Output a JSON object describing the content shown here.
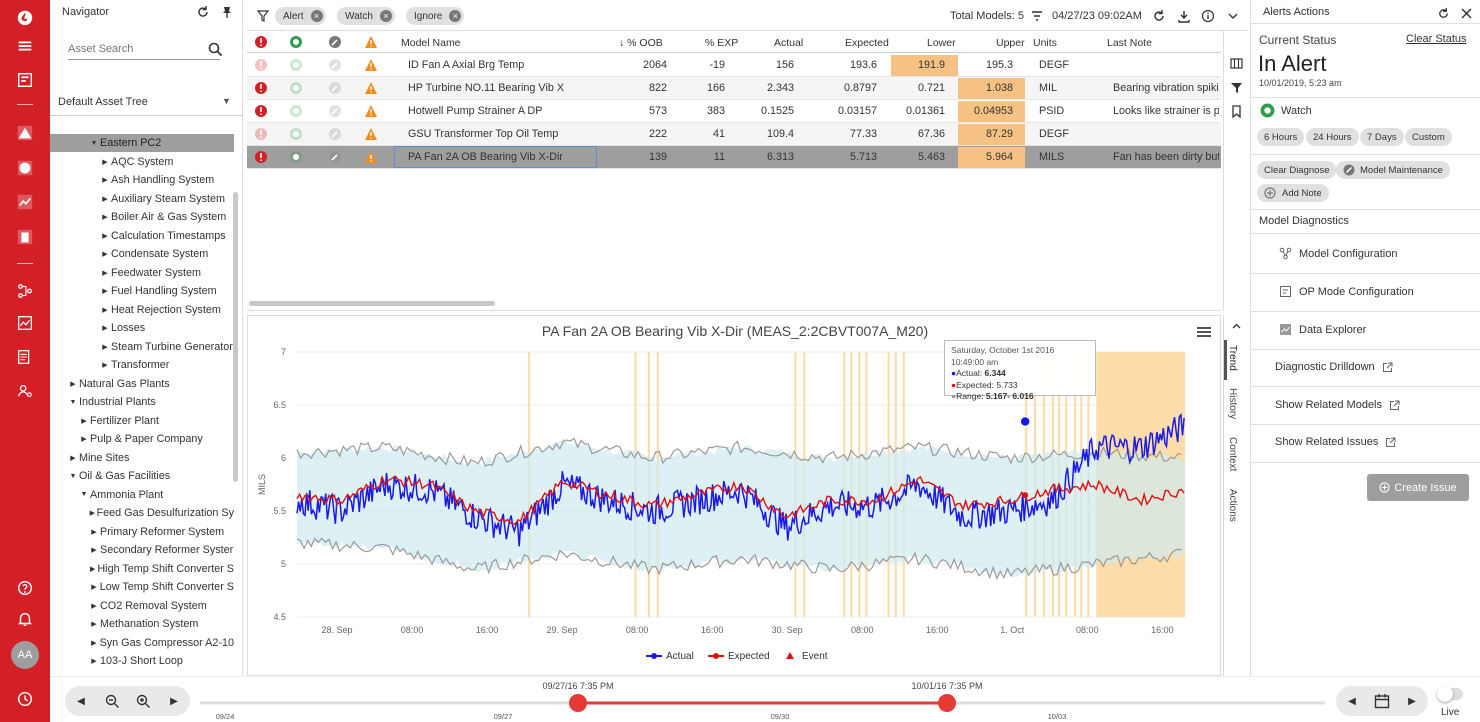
{
  "navigator": {
    "title": "Navigator",
    "search_placeholder": "Asset Search",
    "tree_select": "Default Asset Tree",
    "tree": [
      {
        "label": "Eastern PC2",
        "level": 3,
        "arrow": "down",
        "selected": true
      },
      {
        "label": "AQC System",
        "level": 4,
        "arrow": "right"
      },
      {
        "label": "Ash Handling System",
        "level": 4,
        "arrow": "right"
      },
      {
        "label": "Auxiliary Steam System",
        "level": 4,
        "arrow": "right"
      },
      {
        "label": "Boiler Air & Gas System",
        "level": 4,
        "arrow": "right"
      },
      {
        "label": "Calculation Timestamps",
        "level": 4,
        "arrow": "right"
      },
      {
        "label": "Condensate System",
        "level": 4,
        "arrow": "right"
      },
      {
        "label": "Feedwater System",
        "level": 4,
        "arrow": "right"
      },
      {
        "label": "Fuel Handling System",
        "level": 4,
        "arrow": "right"
      },
      {
        "label": "Heat Rejection System",
        "level": 4,
        "arrow": "right"
      },
      {
        "label": "Losses",
        "level": 4,
        "arrow": "right"
      },
      {
        "label": "Steam Turbine Generator",
        "level": 4,
        "arrow": "right"
      },
      {
        "label": "Transformer",
        "level": 4,
        "arrow": "right"
      },
      {
        "label": "Natural Gas Plants",
        "level": 1,
        "arrow": "right"
      },
      {
        "label": "Industrial Plants",
        "level": 1,
        "arrow": "down"
      },
      {
        "label": "Fertilizer Plant",
        "level": 2,
        "arrow": "right"
      },
      {
        "label": "Pulp & Paper Company",
        "level": 2,
        "arrow": "right"
      },
      {
        "label": "Mine Sites",
        "level": 1,
        "arrow": "right"
      },
      {
        "label": "Oil & Gas Facilities",
        "level": 1,
        "arrow": "down"
      },
      {
        "label": "Ammonia Plant",
        "level": 2,
        "arrow": "down"
      },
      {
        "label": "Feed Gas Desulfurization Sy",
        "level": 3,
        "arrow": "right"
      },
      {
        "label": "Primary Reformer System",
        "level": 3,
        "arrow": "right"
      },
      {
        "label": "Secondary Reformer Syster",
        "level": 3,
        "arrow": "right"
      },
      {
        "label": "High Temp Shift Converter S",
        "level": 3,
        "arrow": "right"
      },
      {
        "label": "Low Temp Shift Converter S",
        "level": 3,
        "arrow": "right"
      },
      {
        "label": "CO2 Removal System",
        "level": 3,
        "arrow": "right"
      },
      {
        "label": "Methanation System",
        "level": 3,
        "arrow": "right"
      },
      {
        "label": "Syn Gas Compressor A2-10",
        "level": 3,
        "arrow": "right"
      },
      {
        "label": "103-J Short Loop",
        "level": 3,
        "arrow": "right"
      }
    ]
  },
  "toolbar": {
    "chips": [
      "Alert",
      "Watch",
      "Ignore"
    ],
    "total_models": "Total Models: 5",
    "date": "04/27/23 09:02AM"
  },
  "table": {
    "headers": [
      "Model Name",
      "% OOB",
      "% EXP",
      "Actual",
      "Expected",
      "Lower",
      "Upper",
      "Units",
      "Last Note"
    ],
    "rows": [
      {
        "name": "ID Fan A Axial Brg Temp",
        "oob": "2064",
        "exp": "-19",
        "actual": "156",
        "expected": "193.6",
        "lower": "191.9",
        "upper": "195.3",
        "units": "DEGF",
        "note": "",
        "hl": "lower",
        "alert": false
      },
      {
        "name": "HP Turbine NO.11 Bearing Vib X",
        "oob": "822",
        "exp": "166",
        "actual": "2.343",
        "expected": "0.8797",
        "lower": "0.721",
        "upper": "1.038",
        "units": "MIL",
        "note": "Bearing vibration spiking",
        "hl": "upper",
        "alert": true
      },
      {
        "name": "Hotwell Pump Strainer A DP",
        "oob": "573",
        "exp": "383",
        "actual": "0.1525",
        "expected": "0.03157",
        "lower": "0.01361",
        "upper": "0.04953",
        "units": "PSID",
        "note": "Looks like strainer is pl",
        "hl": "upper",
        "alert": true
      },
      {
        "name": "GSU Transformer Top Oil Temp",
        "oob": "222",
        "exp": "41",
        "actual": "109.4",
        "expected": "77.33",
        "lower": "67.36",
        "upper": "87.29",
        "units": "DEGF",
        "note": "",
        "hl": "upper",
        "alert": false
      },
      {
        "name": "PA Fan 2A OB Bearing Vib X-Dir",
        "oob": "139",
        "exp": "11",
        "actual": "6.313",
        "expected": "5.713",
        "lower": "5.463",
        "upper": "5.964",
        "units": "MILS",
        "note": "Fan has been dirty but",
        "hl": "upper",
        "alert": true,
        "selected": true
      }
    ]
  },
  "chart": {
    "title": "PA Fan 2A OB Bearing Vib X-Dir (MEAS_2:2CBVT007A_M20)",
    "tooltip": {
      "date": "Saturday, October 1st 2016 10:49:00 am",
      "actual_label": "Actual: ",
      "actual": "6.344",
      "expected_label": "Expected: ",
      "expected": "5.733",
      "range_label": "Range: ",
      "range": "5.167- 6.016"
    }
  },
  "chart_data": {
    "type": "line",
    "title": "PA Fan 2A OB Bearing Vib X-Dir (MEAS_2:2CBVT007A_M20)",
    "ylabel": "MILS",
    "ylim": [
      4.5,
      7
    ],
    "yticks": [
      7,
      6.5,
      6,
      5.5,
      5,
      4.5
    ],
    "xticks": [
      "28. Sep",
      "08:00",
      "16:00",
      "29. Sep",
      "08:00",
      "16:00",
      "30. Sep",
      "08:00",
      "16:00",
      "1. Oct",
      "08:00",
      "16:00"
    ],
    "legend": [
      "Actual",
      "Expected",
      "Event"
    ],
    "series": [
      {
        "name": "Actual",
        "color": "#1a1ae6",
        "x": [
          0,
          5,
          10,
          15,
          20,
          25,
          30,
          35,
          40,
          45,
          50,
          55,
          60,
          65,
          70,
          75,
          80,
          85,
          90,
          95,
          100
        ],
        "values": [
          5.6,
          5.5,
          5.75,
          5.7,
          5.45,
          5.3,
          5.75,
          5.6,
          5.5,
          5.6,
          5.7,
          5.35,
          5.55,
          5.55,
          5.75,
          5.45,
          5.5,
          5.6,
          6.1,
          6.1,
          6.3
        ]
      },
      {
        "name": "Expected",
        "color": "#e01010",
        "x": [
          0,
          5,
          10,
          15,
          20,
          25,
          30,
          35,
          40,
          45,
          50,
          55,
          60,
          65,
          70,
          75,
          80,
          85,
          90,
          95,
          100
        ],
        "values": [
          5.65,
          5.6,
          5.8,
          5.75,
          5.5,
          5.4,
          5.78,
          5.65,
          5.55,
          5.65,
          5.75,
          5.45,
          5.6,
          5.6,
          5.8,
          5.55,
          5.6,
          5.7,
          5.75,
          5.6,
          5.7
        ]
      },
      {
        "name": "Upper",
        "color": "#9a9a9a",
        "x": [
          0,
          10,
          20,
          30,
          40,
          50,
          60,
          70,
          80,
          90,
          100
        ],
        "values": [
          6.05,
          6.1,
          5.95,
          6.15,
          6.0,
          6.1,
          6.0,
          6.1,
          6.0,
          6.05,
          6.0
        ]
      },
      {
        "name": "Lower",
        "color": "#9a9a9a",
        "x": [
          0,
          10,
          20,
          30,
          40,
          50,
          60,
          70,
          80,
          90,
          100
        ],
        "values": [
          5.2,
          5.15,
          4.95,
          5.1,
          4.95,
          5.05,
          4.95,
          5.05,
          4.9,
          5.0,
          5.1
        ]
      }
    ],
    "bands_color": "#fcd9a0",
    "marker": {
      "label": "Actual",
      "x": 82,
      "value": 6.344
    }
  },
  "side": {
    "tabs": [
      "Trend",
      "History",
      "Context",
      "Actions"
    ]
  },
  "alerts": {
    "title": "Alerts Actions",
    "current_status_label": "Current Status",
    "clear_status": "Clear Status",
    "status": "In Alert",
    "status_time": "10/01/2019, 5:23 am",
    "watch": "Watch",
    "durations": [
      "6 Hours",
      "24 Hours",
      "7 Days",
      "Custom"
    ],
    "clear_diagnose": "Clear Diagnose",
    "model_maintenance": "Model Maintenance",
    "add_note": "Add Note",
    "diagnostics_title": "Model Diagnostics",
    "actions": [
      "Model Configuration",
      "OP Mode Configuration",
      "Data Explorer",
      "Diagnostic Drilldown",
      "Show Related Models",
      "Show Related Issues"
    ],
    "create_issue": "Create Issue"
  },
  "timeline": {
    "start_label": "09/27/16 7:35 PM",
    "end_label": "10/01/16 7:35 PM",
    "ticks": [
      "09/24",
      "09/27",
      "09/30",
      "10/03"
    ],
    "live": "Live"
  },
  "user": {
    "initials": "AA"
  },
  "colors": {
    "brand": "#d32027",
    "highlight": "#f5c283",
    "actual": "#1a1ae6",
    "expected": "#e01010"
  }
}
